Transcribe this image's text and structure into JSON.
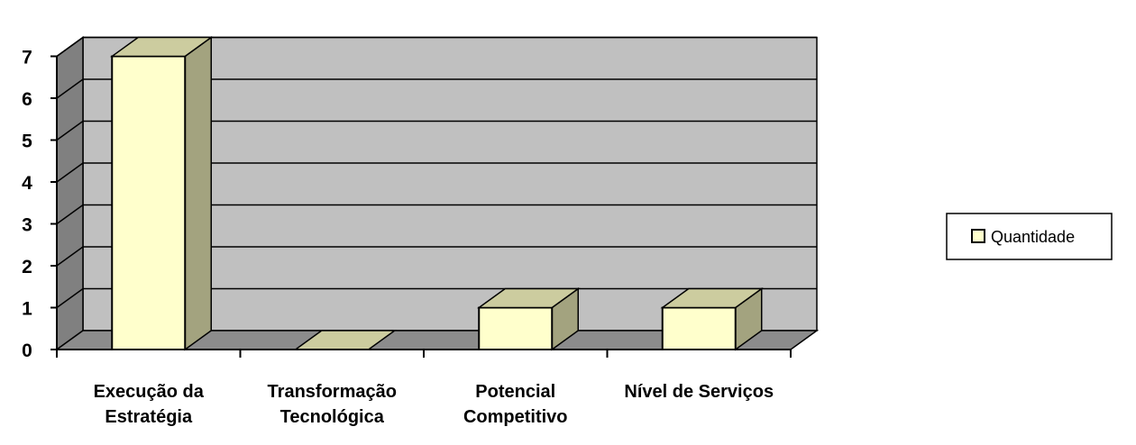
{
  "chart_data": {
    "type": "bar",
    "categories": [
      [
        "Execução da",
        "Estratégia"
      ],
      [
        "Transformação",
        "Tecnológica"
      ],
      [
        "Potencial",
        "Competitivo"
      ],
      [
        "Nível de Serviços"
      ]
    ],
    "series": [
      {
        "name": "Quantidade",
        "values": [
          7,
          0,
          1,
          1
        ],
        "color": "#FFFFCC"
      }
    ],
    "ylim": [
      0,
      7
    ],
    "yticks": [
      0,
      1,
      2,
      3,
      4,
      5,
      6,
      7
    ],
    "grid": true,
    "legend": "right",
    "colors": {
      "wall": "#C0C0C0",
      "side_wall": "#808080",
      "floor": "#8C8C8C",
      "bar_front": "#FFFFCC",
      "bar_top": "#CCCC9F",
      "bar_side": "#A3A37F"
    }
  }
}
